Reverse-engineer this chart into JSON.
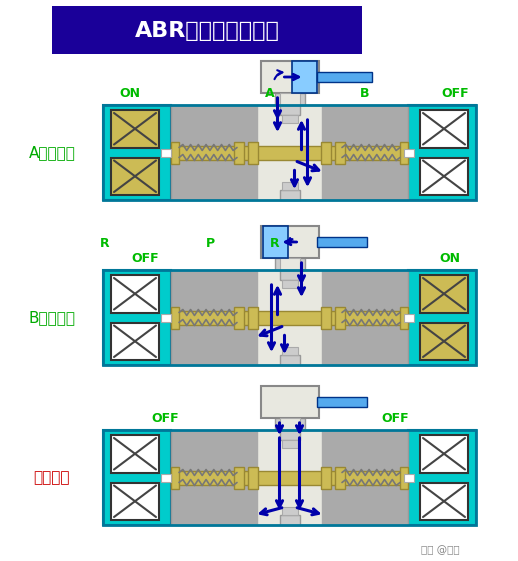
{
  "title": "ABR连接【中泄式】",
  "title_bg": "#1a0099",
  "title_fg": "#ffffff",
  "bg": "#ffffff",
  "cyan": "#00cccc",
  "gray": "#aaaaaa",
  "lgray": "#cccccc",
  "dgray": "#888888",
  "olive": "#ccbb55",
  "white": "#ffffff",
  "green": "#00bb00",
  "dark_green": "#009900",
  "dark_blue": "#0000aa",
  "med_blue": "#2255cc",
  "light_blue": "#55aaee",
  "sky_blue": "#88ccff",
  "off_white": "#e8e8e0",
  "red_label": "#cc0000",
  "watermark": "知乎 @老史",
  "sections": [
    {
      "label": "A唱通电时",
      "label_color": "#00aa00",
      "left_on": true,
      "right_on": false,
      "pilot_dir": "right",
      "s1_labels": [
        [
          "ON",
          130
        ],
        [
          "A",
          270
        ],
        [
          "B",
          365
        ],
        [
          "OFF",
          455
        ]
      ],
      "s2_labels": []
    },
    {
      "label": "B唱通电时",
      "label_color": "#00aa00",
      "left_on": false,
      "right_on": true,
      "pilot_dir": "left",
      "s1_labels": [
        [
          "OFF",
          145
        ],
        [
          "ON",
          450
        ]
      ],
      "s2_labels": [
        [
          "R",
          105
        ],
        [
          "P",
          210
        ],
        [
          "R",
          275
        ]
      ]
    },
    {
      "label": "不通电时",
      "label_color": "#cc0000",
      "left_on": false,
      "right_on": false,
      "pilot_dir": "none",
      "s1_labels": [
        [
          "OFF",
          165
        ],
        [
          "OFF",
          395
        ]
      ],
      "s2_labels": []
    }
  ]
}
